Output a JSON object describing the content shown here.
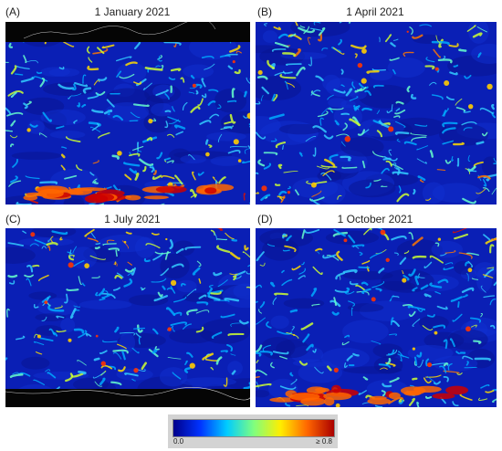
{
  "panels": [
    {
      "label": "(A)",
      "title": "1 January 2021"
    },
    {
      "label": "(B)",
      "title": "1 April 2021"
    },
    {
      "label": "(C)",
      "title": "1 July 2021"
    },
    {
      "label": "(D)",
      "title": "1 October 2021"
    }
  ],
  "colorbar": {
    "min_label": "0.0",
    "max_label": "≥ 0.8",
    "colors": [
      "#00008b",
      "#0033ff",
      "#00ccff",
      "#7fff7f",
      "#ffee00",
      "#ff6600",
      "#aa0000"
    ]
  }
}
